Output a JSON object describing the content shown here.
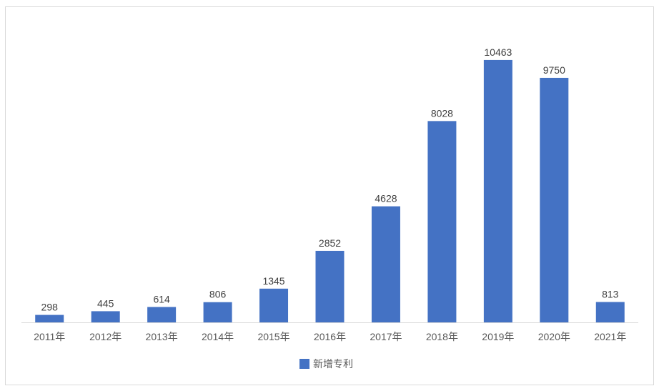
{
  "chart_data": {
    "type": "bar",
    "categories": [
      "2011年",
      "2012年",
      "2013年",
      "2014年",
      "2015年",
      "2016年",
      "2017年",
      "2018年",
      "2019年",
      "2020年",
      "2021年"
    ],
    "series": [
      {
        "name": "新增专利",
        "values": [
          298,
          445,
          614,
          806,
          1345,
          2852,
          4628,
          8028,
          10463,
          9750,
          813
        ],
        "color": "#4472C4"
      }
    ],
    "ylim": [
      0,
      12000
    ],
    "grid": false,
    "legend_position": "bottom",
    "data_labels": true
  }
}
